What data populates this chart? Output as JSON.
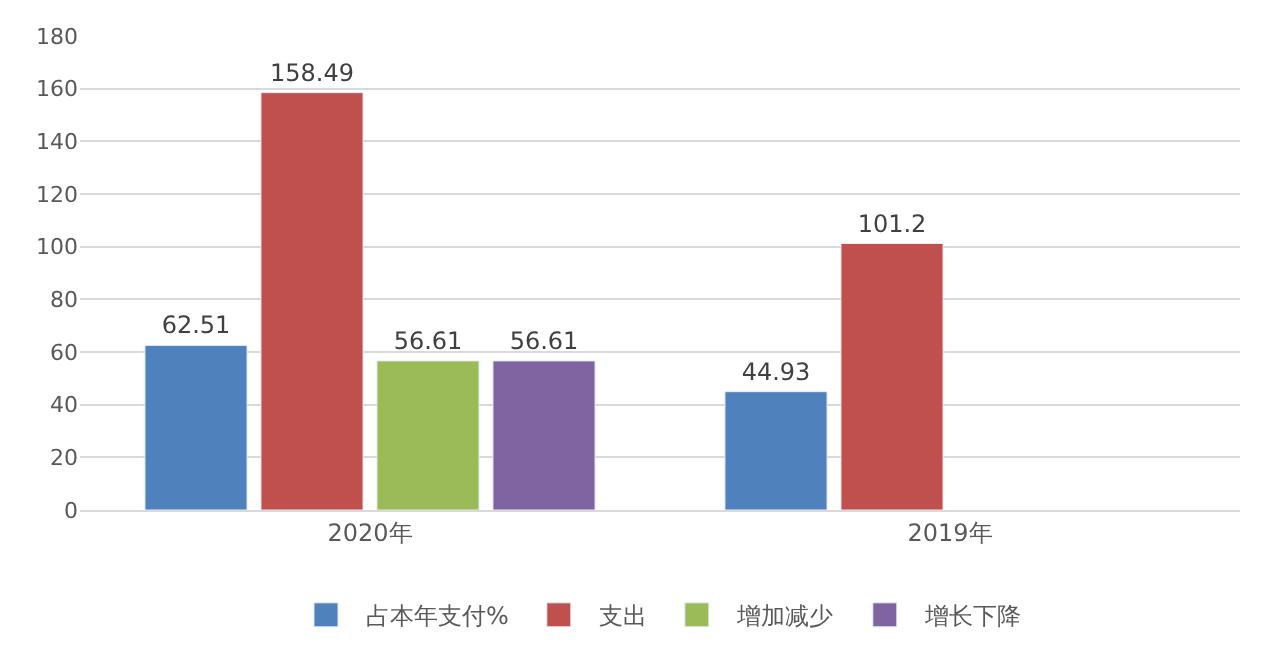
{
  "chart_data": {
    "type": "bar",
    "categories": [
      "2020年",
      "2019年"
    ],
    "series": [
      {
        "name": "占本年支付%",
        "color": "#4f81bd",
        "values": [
          62.51,
          44.93
        ]
      },
      {
        "name": "支出",
        "color": "#c0504d",
        "values": [
          158.49,
          101.2
        ]
      },
      {
        "name": "增加减少",
        "color": "#9bbb59",
        "values": [
          56.61,
          null
        ]
      },
      {
        "name": "增长下降",
        "color": "#8064a2",
        "values": [
          56.61,
          null
        ]
      }
    ],
    "ylim": [
      0,
      180
    ],
    "yticks": [
      0,
      20,
      40,
      60,
      80,
      100,
      120,
      140,
      160,
      180
    ],
    "grid": "y",
    "legend": "bottom",
    "data_labels": true
  }
}
